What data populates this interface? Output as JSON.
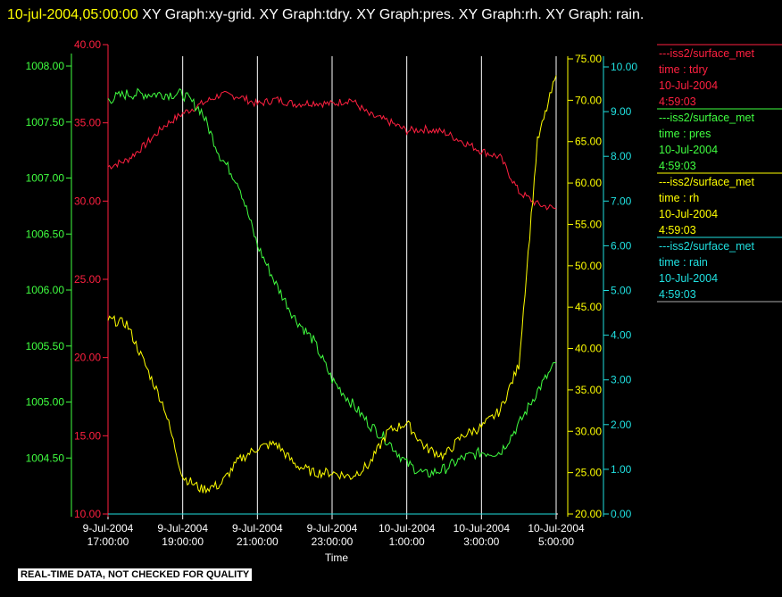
{
  "header": {
    "timestamp": "10-jul-2004,05:00:00",
    "graphs": "XY Graph:xy-grid.  XY Graph:tdry.  XY Graph:pres.  XY Graph:rh.  XY Graph: rain."
  },
  "footer": {
    "notice": "REAL-TIME DATA, NOT CHECKED FOR QUALITY"
  },
  "colors": {
    "tdry": "#ff2040",
    "pres": "#40ff40",
    "rh": "#ffff00",
    "rain": "#20e0e0",
    "grid": "#ffffff"
  },
  "chart_data": {
    "type": "line",
    "xlabel": "Time",
    "x_ticks": [
      {
        "line1": "9-Jul-2004",
        "line2": "17:00:00",
        "hour": 0
      },
      {
        "line1": "9-Jul-2004",
        "line2": "19:00:00",
        "hour": 2
      },
      {
        "line1": "9-Jul-2004",
        "line2": "21:00:00",
        "hour": 4
      },
      {
        "line1": "9-Jul-2004",
        "line2": "23:00:00",
        "hour": 6
      },
      {
        "line1": "10-Jul-2004",
        "line2": "1:00:00",
        "hour": 8
      },
      {
        "line1": "10-Jul-2004",
        "line2": "3:00:00",
        "hour": 10
      },
      {
        "line1": "10-Jul-2004",
        "line2": "5:00:00",
        "hour": 12
      }
    ],
    "axes": {
      "tdry": {
        "ylim": [
          10,
          40
        ],
        "ticks": [
          "10.00",
          "15.00",
          "20.00",
          "25.00",
          "30.00",
          "35.00",
          "40.00"
        ]
      },
      "pres": {
        "ylim": [
          1004.0,
          1008.0
        ],
        "ticks": [
          "1004.50",
          "1005.00",
          "1005.50",
          "1006.00",
          "1006.50",
          "1007.00",
          "1007.50",
          "1008.00"
        ]
      },
      "rh": {
        "ylim": [
          20,
          75
        ],
        "ticks": [
          "20.00",
          "25.00",
          "30.00",
          "35.00",
          "40.00",
          "45.00",
          "50.00",
          "55.00",
          "60.00",
          "65.00",
          "70.00",
          "75.00"
        ]
      },
      "rain": {
        "ylim": [
          0,
          10
        ],
        "ticks": [
          "0.00",
          "1.00",
          "2.00",
          "3.00",
          "4.00",
          "5.00",
          "6.00",
          "7.00",
          "8.00",
          "9.00",
          "10.00"
        ]
      }
    },
    "series": [
      {
        "key": "tdry",
        "legend": {
          "name": "---iss2/surface_met",
          "var": "time : tdry",
          "date": "10-Jul-2004",
          "time": "4:59:03"
        },
        "x": [
          0,
          0.5,
          1,
          1.5,
          2,
          2.5,
          3,
          3.5,
          4,
          4.5,
          5,
          5.5,
          6,
          6.5,
          7,
          7.5,
          8,
          8.5,
          9,
          9.5,
          10,
          10.5,
          11,
          11.5,
          12
        ],
        "values": [
          32.2,
          32.6,
          33.6,
          34.8,
          35.6,
          36.2,
          36.8,
          36.7,
          36.2,
          36.5,
          36.2,
          36.3,
          36.2,
          36.5,
          35.5,
          35.1,
          34.5,
          34.6,
          34.4,
          33.8,
          33.2,
          32.8,
          30.6,
          29.8,
          29.5
        ]
      },
      {
        "key": "pres",
        "legend": {
          "name": "---iss2/surface_met",
          "var": "time : pres",
          "date": "10-Jul-2004",
          "time": "4:59:03"
        },
        "x": [
          0,
          0.5,
          1,
          1.5,
          2,
          2.5,
          3,
          3.5,
          4,
          4.5,
          5,
          5.5,
          6,
          6.5,
          7,
          7.5,
          8,
          8.5,
          9,
          9.5,
          10,
          10.5,
          11,
          11.5,
          12
        ],
        "values": [
          1007.7,
          1007.75,
          1007.75,
          1007.75,
          1007.75,
          1007.6,
          1007.2,
          1006.95,
          1006.4,
          1006.05,
          1005.75,
          1005.55,
          1005.2,
          1005.0,
          1004.8,
          1004.65,
          1004.45,
          1004.35,
          1004.4,
          1004.5,
          1004.55,
          1004.55,
          1004.8,
          1005.1,
          1005.35
        ]
      },
      {
        "key": "rh",
        "legend": {
          "name": "---iss2/surface_met",
          "var": "time : rh",
          "date": "10-Jul-2004",
          "time": "4:59:03"
        },
        "x": [
          0,
          0.5,
          1,
          1.5,
          2,
          2.5,
          3,
          3.5,
          4,
          4.5,
          5,
          5.5,
          6,
          6.5,
          7,
          7.5,
          8,
          8.5,
          9,
          9.5,
          10,
          10.5,
          11,
          11.5,
          12
        ],
        "values": [
          43.5,
          43,
          38,
          33,
          24.5,
          23,
          23.5,
          26.5,
          28,
          28.5,
          26,
          25,
          25,
          24.5,
          26,
          30,
          31,
          28,
          27,
          29.5,
          30.5,
          32.5,
          38,
          65,
          73
        ]
      },
      {
        "key": "rain",
        "legend": {
          "name": "---iss2/surface_met",
          "var": "time : rain",
          "date": "10-Jul-2004",
          "time": "4:59:03"
        },
        "x": [
          0,
          12
        ],
        "values": [
          0,
          0
        ]
      }
    ]
  }
}
